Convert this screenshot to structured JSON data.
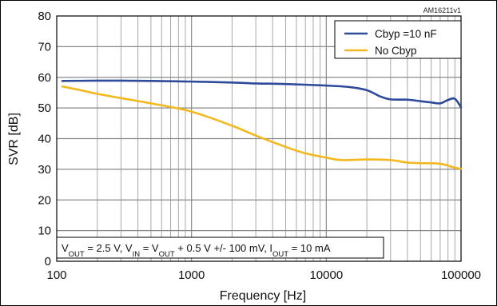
{
  "figure_id": "AM16211v1",
  "chart_data": {
    "type": "line",
    "title": "",
    "xlabel": "Frequency [Hz]",
    "ylabel": "SVR [dB]",
    "xscale": "log",
    "xlim": [
      100,
      100000
    ],
    "ylim": [
      0,
      80
    ],
    "x_ticks": [
      "100",
      "1000",
      "10000",
      "100000"
    ],
    "y_ticks": [
      "0",
      "10",
      "20",
      "30",
      "40",
      "50",
      "60",
      "70",
      "80"
    ],
    "grid": true,
    "legend_position": "top-right",
    "annotation": {
      "parts": [
        "V",
        "OUT",
        " = 2.5 V, V",
        "IN",
        " = V",
        "OUT",
        " + 0.5 V +/- 100 mV, I",
        "OUT",
        " = 10 mA"
      ]
    },
    "series": [
      {
        "name": "Cbyp =10 nF",
        "color": "#2e4a9a",
        "points": [
          [
            110,
            58.8
          ],
          [
            200,
            58.9
          ],
          [
            300,
            58.9
          ],
          [
            500,
            58.8
          ],
          [
            1000,
            58.6
          ],
          [
            2000,
            58.3
          ],
          [
            3000,
            58.0
          ],
          [
            5000,
            57.8
          ],
          [
            10000,
            57.3
          ],
          [
            15000,
            56.8
          ],
          [
            20000,
            55.8
          ],
          [
            25000,
            53.8
          ],
          [
            30000,
            52.8
          ],
          [
            40000,
            52.7
          ],
          [
            50000,
            52.2
          ],
          [
            60000,
            51.8
          ],
          [
            70000,
            51.5
          ],
          [
            80000,
            52.6
          ],
          [
            90000,
            53.0
          ],
          [
            100000,
            50.2
          ]
        ]
      },
      {
        "name": "No Cbyp",
        "color": "#f2b81d",
        "points": [
          [
            110,
            57.0
          ],
          [
            150,
            55.8
          ],
          [
            200,
            54.6
          ],
          [
            300,
            53.2
          ],
          [
            500,
            51.5
          ],
          [
            1000,
            48.8
          ],
          [
            2000,
            44.2
          ],
          [
            3000,
            41.0
          ],
          [
            5000,
            37.3
          ],
          [
            7000,
            35.2
          ],
          [
            10000,
            33.8
          ],
          [
            13000,
            33.0
          ],
          [
            20000,
            33.2
          ],
          [
            30000,
            33.0
          ],
          [
            40000,
            32.2
          ],
          [
            50000,
            32.0
          ],
          [
            70000,
            31.8
          ],
          [
            90000,
            30.5
          ],
          [
            100000,
            30.2
          ]
        ]
      }
    ]
  }
}
